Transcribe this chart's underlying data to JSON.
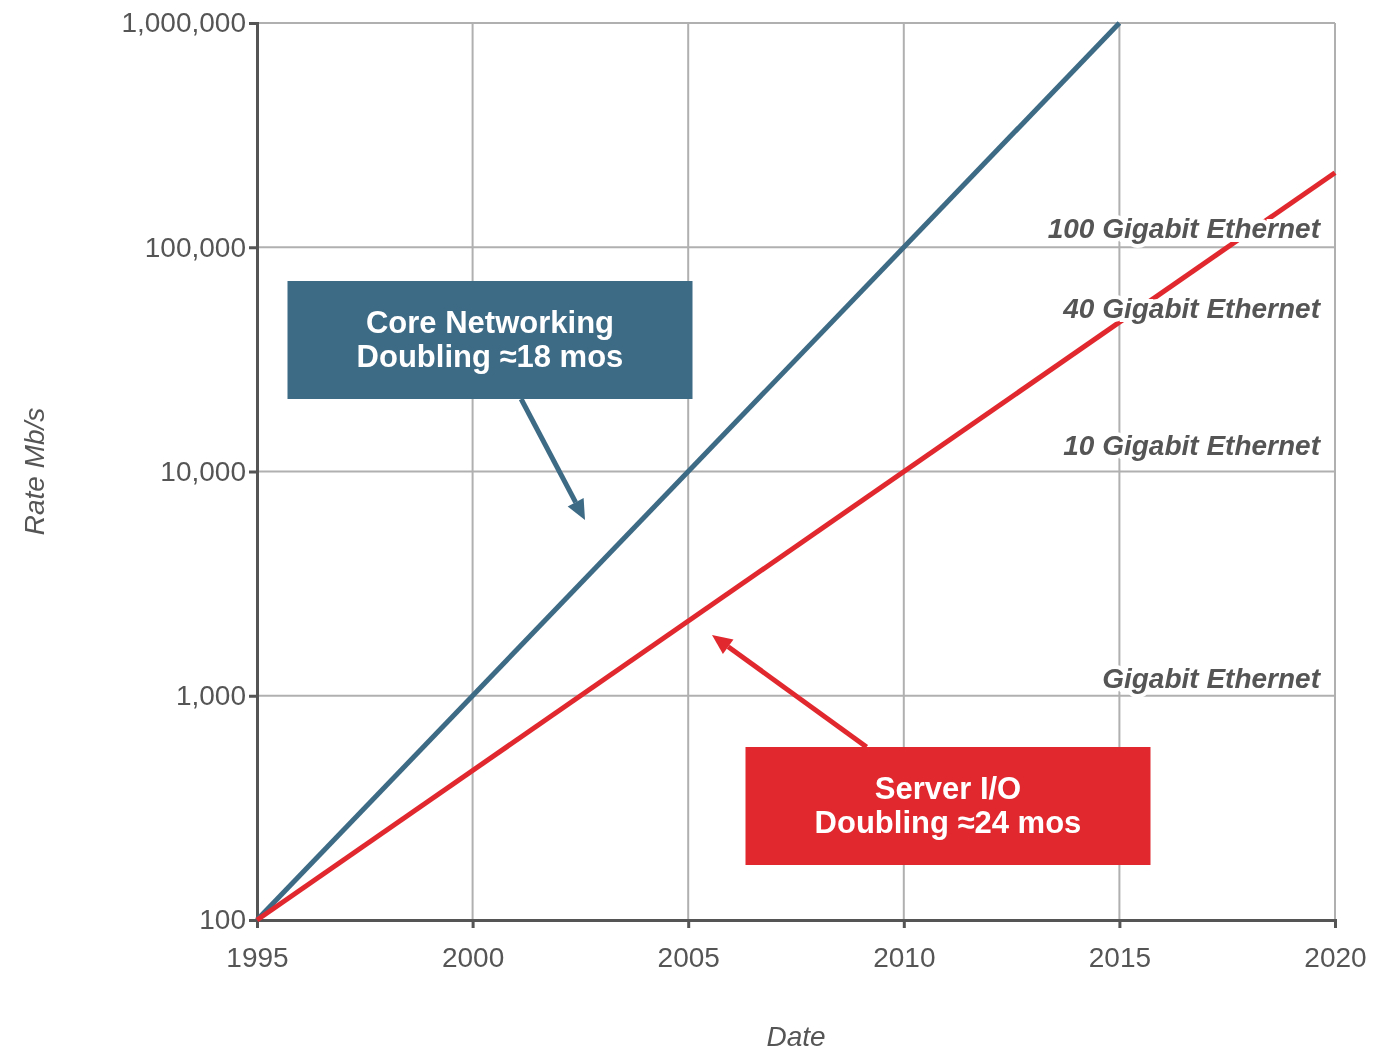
{
  "chart_data": {
    "type": "line",
    "xlabel": "Date",
    "ylabel": "Rate Mb/s",
    "log": "y",
    "grid": true,
    "marker": "none",
    "line_style": "solid",
    "xlim": [
      1995,
      2020
    ],
    "xticks": [
      1995,
      2000,
      2005,
      2010,
      2015,
      2020
    ],
    "ylim": [
      100,
      1000000
    ],
    "yticks": [
      {
        "value": 100,
        "label": "100"
      },
      {
        "value": 1000,
        "label": "1,000"
      },
      {
        "value": 10000,
        "label": "10,000"
      },
      {
        "value": 100000,
        "label": "100,000"
      },
      {
        "value": 1000000,
        "label": "1,000,000"
      }
    ],
    "series": [
      {
        "color": "#3d6a85",
        "x": [
          1995,
          2015
        ],
        "values": [
          100,
          1000000
        ]
      },
      {
        "color": "#e0282e",
        "x": [
          1995,
          2020
        ],
        "values": [
          100,
          215000
        ]
      }
    ],
    "annotations": [
      "100 Gigabit Ethernet",
      "40 Gigabit Ethernet",
      "10 Gigabit Ethernet",
      "Gigabit Ethernet",
      "Core Networking\nDoubling ≈18 mos",
      "Server I/O\nDoubling ≈24 mos"
    ]
  }
}
